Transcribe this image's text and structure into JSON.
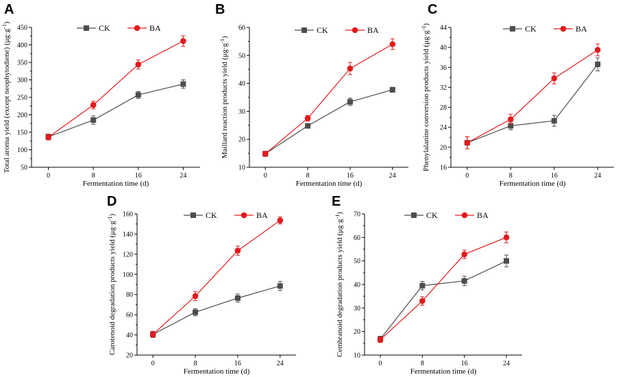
{
  "colors": {
    "CK": "#4d4d4d",
    "BA": "#e31a1c",
    "axis": "#000000"
  },
  "chart_data": [
    {
      "panel": "A",
      "type": "line",
      "x_label": "Fermentation time (d)",
      "y_label_prefix": "Total aroma yield (except neophytodiene) (μg·g",
      "y_label_exp": "-1",
      "y_label_suffix": ")",
      "categories": [
        "0",
        "8",
        "16",
        "24"
      ],
      "ylim": [
        50,
        450
      ],
      "yticks": [
        50,
        100,
        150,
        200,
        250,
        300,
        350,
        400,
        450
      ],
      "series": [
        {
          "name": "CK",
          "values": [
            137,
            185,
            257,
            288
          ],
          "err": [
            8,
            12,
            10,
            12
          ]
        },
        {
          "name": "BA",
          "values": [
            136,
            228,
            344,
            411
          ],
          "err": [
            8,
            11,
            13,
            15
          ]
        }
      ]
    },
    {
      "panel": "B",
      "type": "line",
      "x_label": "Fermentation time (d)",
      "y_label_prefix": "Maillard reaction products yield (μg·g",
      "y_label_exp": "-1",
      "y_label_suffix": ")",
      "categories": [
        "0",
        "8",
        "16",
        "24"
      ],
      "ylim": [
        10,
        60
      ],
      "yticks": [
        10,
        20,
        30,
        40,
        50,
        60
      ],
      "series": [
        {
          "name": "CK",
          "values": [
            14.8,
            24.8,
            33.4,
            37.7
          ],
          "err": [
            0.9,
            0.8,
            1.3,
            0.9
          ]
        },
        {
          "name": "BA",
          "values": [
            14.8,
            27.5,
            45.3,
            54.0
          ],
          "err": [
            0.9,
            1.0,
            2.2,
            1.9
          ]
        }
      ]
    },
    {
      "panel": "C",
      "type": "line",
      "x_label": "Fermentation time (d)",
      "y_label_prefix": "Phenylalanine conversion products yield (μg·g",
      "y_label_exp": "-1",
      "y_label_suffix": ")",
      "categories": [
        "0",
        "8",
        "16",
        "24"
      ],
      "ylim": [
        16,
        44
      ],
      "yticks": [
        16,
        20,
        24,
        28,
        32,
        36,
        40,
        44
      ],
      "series": [
        {
          "name": "CK",
          "values": [
            20.9,
            24.3,
            25.3,
            36.6
          ],
          "err": [
            1.2,
            0.8,
            1.1,
            1.3
          ]
        },
        {
          "name": "BA",
          "values": [
            20.9,
            25.6,
            33.8,
            39.5
          ],
          "err": [
            1.2,
            1.0,
            1.1,
            1.2
          ]
        }
      ]
    },
    {
      "panel": "D",
      "type": "line",
      "x_label": "Fermentation time (d)",
      "y_label_prefix": "Carotenoid degradation products yield (μg·g",
      "y_label_exp": "-1",
      "y_label_suffix": ")",
      "categories": [
        "0",
        "8",
        "16",
        "24"
      ],
      "ylim": [
        20,
        160
      ],
      "yticks": [
        20,
        40,
        60,
        80,
        100,
        120,
        140,
        160
      ],
      "series": [
        {
          "name": "CK",
          "values": [
            40.5,
            62.5,
            76.5,
            88.5
          ],
          "err": [
            3,
            3.5,
            4,
            4.5
          ]
        },
        {
          "name": "BA",
          "values": [
            40.5,
            78.5,
            123.5,
            153.5
          ],
          "err": [
            3,
            4.5,
            4.5,
            3.5
          ]
        }
      ]
    },
    {
      "panel": "E",
      "type": "line",
      "x_label": "Fermentation time (d)",
      "y_label_prefix": "Cembranoid degradation products yield (μg·g",
      "y_label_exp": "-1",
      "y_label_suffix": ")",
      "categories": [
        "0",
        "8",
        "16",
        "24"
      ],
      "ylim": [
        10,
        70
      ],
      "yticks": [
        10,
        20,
        30,
        40,
        50,
        60,
        70
      ],
      "series": [
        {
          "name": "CK",
          "values": [
            16.8,
            39.5,
            41.5,
            50.0
          ],
          "err": [
            1.2,
            1.8,
            2.0,
            2.5
          ]
        },
        {
          "name": "BA",
          "values": [
            16.5,
            33.0,
            52.8,
            60.0
          ],
          "err": [
            1.2,
            1.8,
            1.8,
            2.3
          ]
        }
      ]
    }
  ]
}
